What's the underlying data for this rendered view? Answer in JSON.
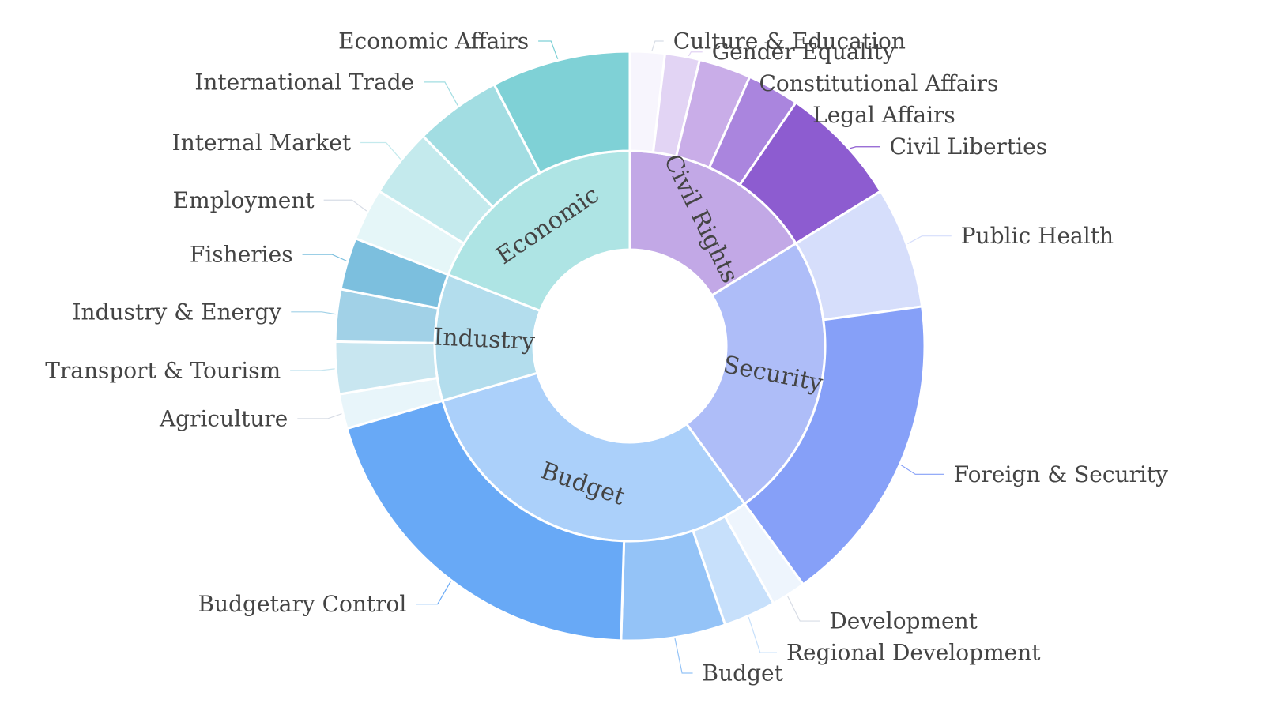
{
  "chart_data": {
    "type": "sunburst",
    "title": "",
    "categories": [
      {
        "name": "Civil Rights",
        "color": "#c2a8e6",
        "children": [
          {
            "name": "Culture & Education",
            "value": 2,
            "color": "#f7f5fd"
          },
          {
            "name": "Gender Equality",
            "value": 2,
            "color": "#e2d4f4"
          },
          {
            "name": "Constitutional Affairs",
            "value": 3,
            "color": "#c9ade8"
          },
          {
            "name": "Legal Affairs",
            "value": 3,
            "color": "#aa85de"
          },
          {
            "name": "Civil Liberties",
            "value": 7,
            "color": "#8d5cd0"
          }
        ]
      },
      {
        "name": "Security",
        "color": "#aebdf8",
        "children": [
          {
            "name": "Public Health",
            "value": 7,
            "color": "#d6defb"
          },
          {
            "name": "Foreign & Security",
            "value": 18,
            "color": "#86a0f8"
          }
        ]
      },
      {
        "name": "Budget",
        "color": "#abd0fa",
        "children": [
          {
            "name": "Development",
            "value": 2,
            "color": "#eef5fd"
          },
          {
            "name": "Regional Development",
            "value": 3,
            "color": "#c7e0fb"
          },
          {
            "name": "Budget",
            "value": 6,
            "color": "#94c3f7"
          },
          {
            "name": "Budgetary Control",
            "value": 21,
            "color": "#68a9f6"
          }
        ]
      },
      {
        "name": "Industry",
        "color": "#b3dded",
        "children": [
          {
            "name": "Agriculture",
            "value": 2,
            "color": "#e8f5fa"
          },
          {
            "name": "Transport & Tourism",
            "value": 3,
            "color": "#c8e6f0"
          },
          {
            "name": "Industry & Energy",
            "value": 3,
            "color": "#a1d1e7"
          },
          {
            "name": "Fisheries",
            "value": 3,
            "color": "#7cbfde"
          }
        ]
      },
      {
        "name": "Economic",
        "color": "#aee4e4",
        "children": [
          {
            "name": "Employment",
            "value": 3,
            "color": "#e5f6f8"
          },
          {
            "name": "Internal Market",
            "value": 4,
            "color": "#c4eaed"
          },
          {
            "name": "International Trade",
            "value": 5,
            "color": "#a2dde2"
          },
          {
            "name": "Economic Affairs",
            "value": 8,
            "color": "#7fd1d6"
          }
        ]
      }
    ]
  }
}
